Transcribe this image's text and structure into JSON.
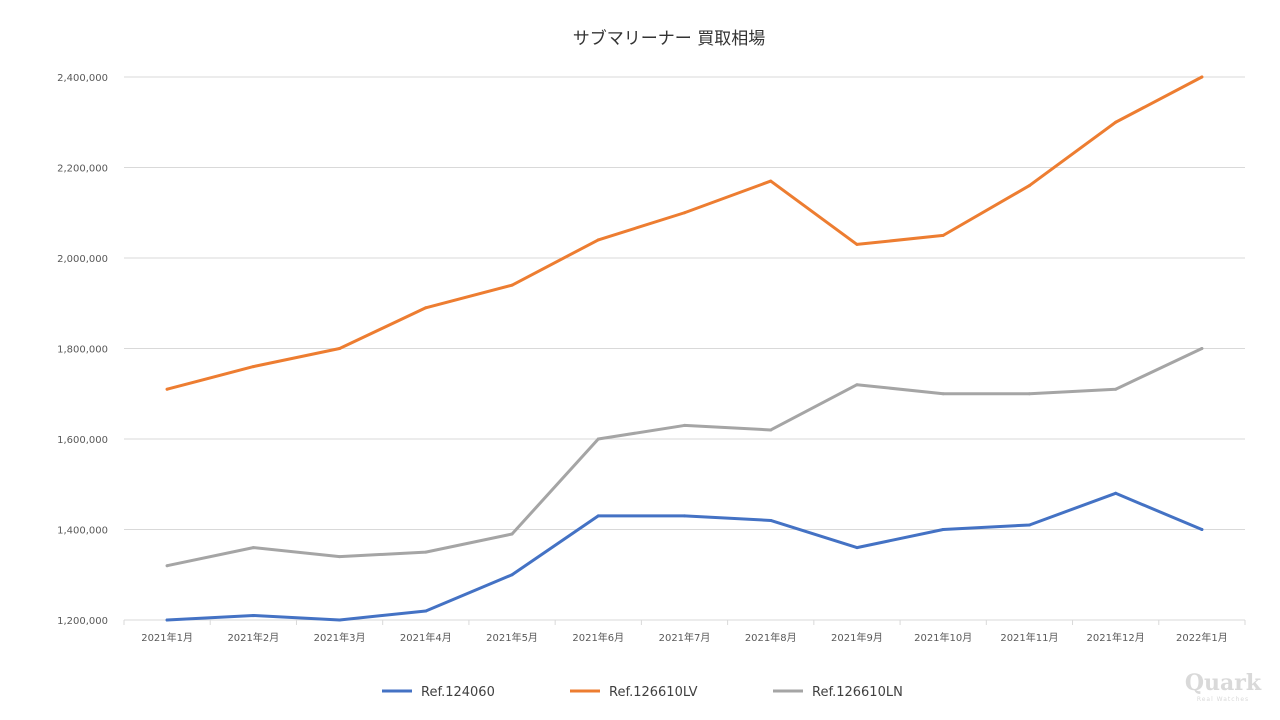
{
  "chart_data": {
    "type": "line",
    "title": "サブマリーナー 買取相場",
    "xlabel": "",
    "ylabel": "",
    "ylim": [
      1200000,
      2400000
    ],
    "yticks": [
      "1,200,000",
      "1,400,000",
      "1,600,000",
      "1,800,000",
      "2,000,000",
      "2,200,000",
      "2,400,000"
    ],
    "grid": true,
    "legend_position": "bottom",
    "categories": [
      "2021年1月",
      "2021年2月",
      "2021年3月",
      "2021年4月",
      "2021年5月",
      "2021年6月",
      "2021年7月",
      "2021年8月",
      "2021年9月",
      "2021年10月",
      "2021年11月",
      "2021年12月",
      "2022年1月"
    ],
    "series": [
      {
        "name": "Ref.124060",
        "color": "#4472c4",
        "values": [
          1200000,
          1210000,
          1200000,
          1220000,
          1300000,
          1430000,
          1430000,
          1420000,
          1360000,
          1400000,
          1410000,
          1480000,
          1400000
        ]
      },
      {
        "name": "Ref.126610LV",
        "color": "#ed7d31",
        "values": [
          1710000,
          1760000,
          1800000,
          1890000,
          1940000,
          2040000,
          2100000,
          2170000,
          2030000,
          2050000,
          2160000,
          2300000,
          2400000
        ]
      },
      {
        "name": "Ref.126610LN",
        "color": "#a5a5a5",
        "values": [
          1320000,
          1360000,
          1340000,
          1350000,
          1390000,
          1600000,
          1630000,
          1620000,
          1720000,
          1700000,
          1700000,
          1710000,
          1800000
        ]
      }
    ]
  },
  "watermark": {
    "brand": "Quark",
    "tagline": "Real Watches"
  }
}
